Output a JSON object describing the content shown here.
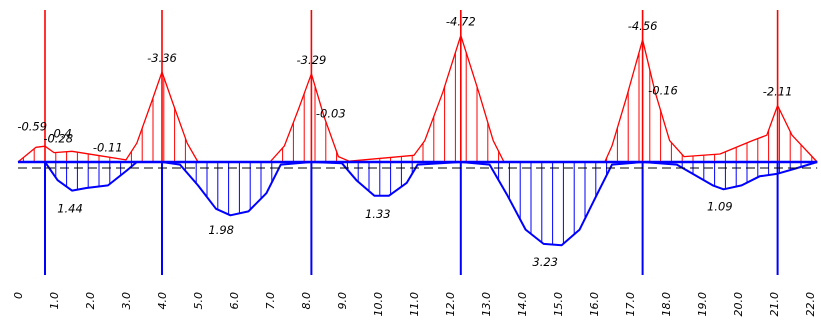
{
  "colors": {
    "negative_moment": "#ff0000",
    "positive_moment": "#0000ff",
    "baseline": "#000000"
  },
  "x_axis": {
    "range": [
      0,
      22.2
    ],
    "tick_labels": [
      "0",
      "1.0",
      "2.0",
      "3.0",
      "4.0",
      "5.0",
      "6.0",
      "7.0",
      "8.0",
      "9.0",
      "10.0",
      "11.0",
      "12.0",
      "13.0",
      "14.0",
      "15.0",
      "16.0",
      "17.0",
      "18.0",
      "19.0",
      "20.0",
      "21.0",
      "22.0"
    ]
  },
  "supports": [
    0.75,
    4.0,
    8.15,
    12.3,
    17.35,
    21.1
  ],
  "negative_peaks": [
    {
      "x": 0.45,
      "value": "-0.59"
    },
    {
      "x": 0.95,
      "value": "-0.28"
    },
    {
      "x": 1.35,
      "value": "-0.4"
    },
    {
      "x": 2.55,
      "value": "-0.11"
    },
    {
      "x": 4.0,
      "value": "-3.36"
    },
    {
      "x": 8.15,
      "value": "-3.29"
    },
    {
      "x": 8.55,
      "value": "-0.03"
    },
    {
      "x": 12.3,
      "value": "-4.72"
    },
    {
      "x": 17.35,
      "value": "-4.56"
    },
    {
      "x": 17.75,
      "value": "-0.16"
    },
    {
      "x": 21.1,
      "value": "-2.11"
    }
  ],
  "positive_peaks": [
    {
      "x": 1.5,
      "value": "1.44"
    },
    {
      "x": 5.7,
      "value": "1.98"
    },
    {
      "x": 10.05,
      "value": "1.33"
    },
    {
      "x": 14.7,
      "value": "3.23"
    },
    {
      "x": 19.55,
      "value": "1.09"
    }
  ],
  "negative_curve": [
    [
      0,
      0
    ],
    [
      0.5,
      0.55
    ],
    [
      0.75,
      0.59
    ],
    [
      1.0,
      0.35
    ],
    [
      1.5,
      0.4
    ],
    [
      2.2,
      0.25
    ],
    [
      3.0,
      0.08
    ],
    [
      3.3,
      0.7
    ],
    [
      3.7,
      2.2
    ],
    [
      4.0,
      3.36
    ],
    [
      4.3,
      2.2
    ],
    [
      4.7,
      0.7
    ],
    [
      5.0,
      0.0
    ],
    [
      7.0,
      0.0
    ],
    [
      7.4,
      0.6
    ],
    [
      7.8,
      2.0
    ],
    [
      8.15,
      3.29
    ],
    [
      8.5,
      1.7
    ],
    [
      8.9,
      0.2
    ],
    [
      9.2,
      0.03
    ],
    [
      11.0,
      0.25
    ],
    [
      11.3,
      0.8
    ],
    [
      11.8,
      2.6
    ],
    [
      12.3,
      4.72
    ],
    [
      12.8,
      2.6
    ],
    [
      13.2,
      0.8
    ],
    [
      13.5,
      0.0
    ],
    [
      16.3,
      0.0
    ],
    [
      16.5,
      0.6
    ],
    [
      16.9,
      2.4
    ],
    [
      17.35,
      4.56
    ],
    [
      17.7,
      2.6
    ],
    [
      18.1,
      0.8
    ],
    [
      18.5,
      0.2
    ],
    [
      19.5,
      0.3
    ],
    [
      20.4,
      0.8
    ],
    [
      20.8,
      1.0
    ],
    [
      21.1,
      2.11
    ],
    [
      21.5,
      1.0
    ],
    [
      22.2,
      0.0
    ]
  ],
  "positive_curve": [
    [
      0.75,
      0.0
    ],
    [
      1.1,
      0.7
    ],
    [
      1.5,
      1.1
    ],
    [
      1.9,
      1.0
    ],
    [
      2.5,
      0.9
    ],
    [
      3.0,
      0.35
    ],
    [
      3.3,
      0.0
    ],
    [
      4.0,
      0.0
    ],
    [
      4.5,
      0.1
    ],
    [
      5.0,
      0.9
    ],
    [
      5.5,
      1.8
    ],
    [
      5.9,
      2.05
    ],
    [
      6.4,
      1.9
    ],
    [
      6.9,
      1.2
    ],
    [
      7.3,
      0.1
    ],
    [
      8.15,
      0.0
    ],
    [
      9.0,
      0.05
    ],
    [
      9.4,
      0.7
    ],
    [
      9.9,
      1.3
    ],
    [
      10.3,
      1.3
    ],
    [
      10.8,
      0.8
    ],
    [
      11.1,
      0.1
    ],
    [
      12.3,
      0.0
    ],
    [
      13.1,
      0.1
    ],
    [
      13.6,
      1.3
    ],
    [
      14.1,
      2.6
    ],
    [
      14.6,
      3.15
    ],
    [
      15.1,
      3.2
    ],
    [
      15.6,
      2.6
    ],
    [
      16.1,
      1.2
    ],
    [
      16.5,
      0.1
    ],
    [
      17.35,
      0.0
    ],
    [
      18.3,
      0.1
    ],
    [
      18.8,
      0.5
    ],
    [
      19.3,
      0.9
    ],
    [
      19.6,
      1.05
    ],
    [
      20.1,
      0.9
    ],
    [
      20.6,
      0.55
    ],
    [
      21.1,
      0.45
    ],
    [
      21.6,
      0.25
    ],
    [
      22.2,
      0.0
    ]
  ]
}
